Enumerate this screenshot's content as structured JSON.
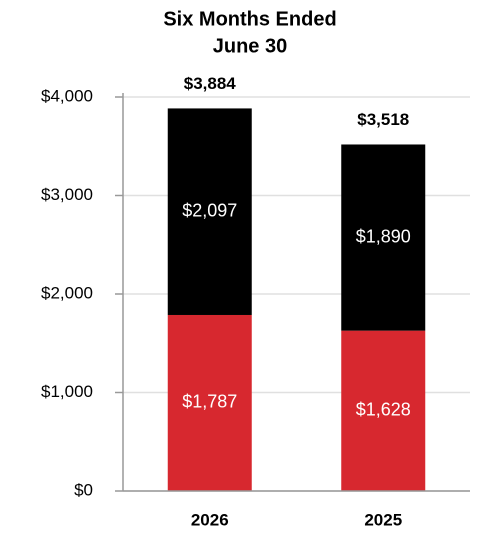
{
  "chart_data": {
    "type": "stacked-bar",
    "title": [
      "Six Months Ended",
      "June 30"
    ],
    "categories": [
      "2026",
      "2025"
    ],
    "series": [
      {
        "color": "#d7282f",
        "values": [
          1787,
          1628
        ],
        "value_labels": [
          "$1,787",
          "$1,628"
        ]
      },
      {
        "color": "#000000",
        "values": [
          2097,
          1890
        ],
        "value_labels": [
          "$2,097",
          "$1,890"
        ]
      }
    ],
    "totals": {
      "values": [
        3884,
        3518
      ],
      "value_labels": [
        "$3,884",
        "$3,518"
      ]
    },
    "ylim": [
      0,
      4000
    ],
    "yticks": [
      {
        "value": 0,
        "label": "$0"
      },
      {
        "value": 1000,
        "label": "$1,000"
      },
      {
        "value": 2000,
        "label": "$2,000"
      },
      {
        "value": 3000,
        "label": "$3,000"
      },
      {
        "value": 4000,
        "label": "$4,000"
      }
    ],
    "grid": true
  }
}
